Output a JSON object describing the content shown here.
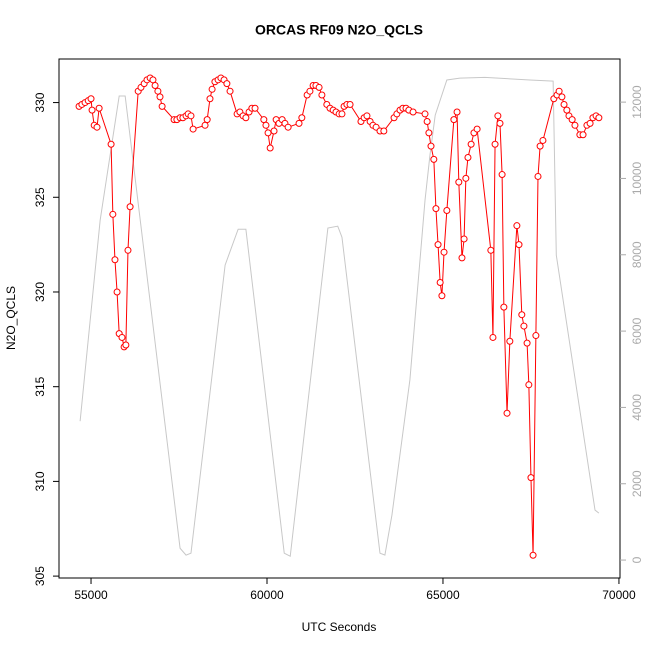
{
  "chart_data": {
    "type": "line",
    "title": "ORCAS RF09 N2O_QCLS",
    "xlabel": "UTC Seconds",
    "ylabel": "N2O_QCLS",
    "xlim": [
      54090,
      70030
    ],
    "ylim": [
      304.9,
      332.3
    ],
    "y2lim": [
      -470,
      13130
    ],
    "xticks": [
      55000,
      60000,
      65000,
      70000
    ],
    "yticks": [
      305,
      310,
      315,
      320,
      325,
      330
    ],
    "y2ticks": [
      0,
      2000,
      4000,
      6000,
      8000,
      10000,
      12000
    ],
    "series": [
      {
        "color": "#ff0000",
        "marker": "circle",
        "x": [
          54660,
          54740,
          54830,
          54920,
          55000,
          55030,
          55090,
          55170,
          55230,
          55570,
          55620,
          55680,
          55740,
          55800,
          55880,
          55940,
          55990,
          56050,
          56110,
          56340,
          56420,
          56510,
          56590,
          56680,
          56760,
          56820,
          56900,
          56960,
          57020,
          57360,
          57440,
          57530,
          57610,
          57700,
          57760,
          57840,
          57900,
          58240,
          58300,
          58380,
          58440,
          58520,
          58610,
          58690,
          58780,
          58860,
          58950,
          59150,
          59230,
          59320,
          59400,
          59490,
          59570,
          59660,
          59910,
          59970,
          60030,
          60090,
          60200,
          60260,
          60340,
          60430,
          60510,
          60600,
          60910,
          60990,
          61140,
          61220,
          61310,
          61390,
          61480,
          61560,
          61700,
          61790,
          61880,
          61960,
          62050,
          62130,
          62190,
          62270,
          62360,
          62670,
          62760,
          62840,
          62930,
          63010,
          63100,
          63210,
          63320,
          63610,
          63690,
          63780,
          63860,
          63950,
          64030,
          64150,
          64490,
          64550,
          64600,
          64660,
          64740,
          64800,
          64860,
          64920,
          64970,
          65030,
          65110,
          65310,
          65400,
          65450,
          65540,
          65600,
          65650,
          65710,
          65800,
          65880,
          65970,
          66360,
          66420,
          66480,
          66560,
          66620,
          66680,
          66730,
          66820,
          66900,
          67100,
          67160,
          67240,
          67300,
          67390,
          67440,
          67500,
          67560,
          67640,
          67700,
          67760,
          67840,
          68150,
          68240,
          68300,
          68380,
          68440,
          68520,
          68580,
          68670,
          68750,
          68890,
          68980,
          69090,
          69180,
          69260,
          69350,
          69430
        ],
        "values": [
          329.8,
          329.9,
          330.0,
          330.1,
          330.2,
          329.6,
          328.8,
          328.7,
          329.7,
          327.8,
          324.1,
          321.7,
          320.0,
          317.8,
          317.6,
          317.1,
          317.2,
          322.2,
          324.5,
          330.6,
          330.8,
          331.0,
          331.2,
          331.3,
          331.2,
          330.9,
          330.6,
          330.3,
          329.8,
          329.1,
          329.1,
          329.2,
          329.2,
          329.3,
          329.4,
          329.3,
          328.6,
          328.8,
          329.1,
          330.2,
          330.7,
          331.1,
          331.2,
          331.3,
          331.2,
          331.0,
          330.6,
          329.4,
          329.5,
          329.3,
          329.2,
          329.5,
          329.7,
          329.7,
          329.1,
          328.8,
          328.4,
          327.6,
          328.5,
          329.1,
          328.9,
          329.1,
          328.9,
          328.7,
          328.9,
          329.2,
          330.4,
          330.6,
          330.9,
          330.9,
          330.8,
          330.4,
          329.9,
          329.7,
          329.6,
          329.5,
          329.4,
          329.4,
          329.8,
          329.9,
          329.9,
          329.0,
          329.2,
          329.3,
          329.0,
          328.8,
          328.7,
          328.5,
          328.5,
          329.2,
          329.4,
          329.6,
          329.7,
          329.7,
          329.6,
          329.5,
          329.4,
          329.0,
          328.4,
          327.7,
          327.0,
          324.4,
          322.5,
          320.5,
          319.8,
          322.1,
          324.3,
          329.1,
          329.5,
          325.8,
          321.8,
          322.8,
          326.0,
          327.1,
          327.8,
          328.4,
          328.6,
          322.2,
          317.6,
          327.8,
          329.3,
          328.9,
          326.2,
          319.2,
          313.6,
          317.4,
          323.5,
          322.5,
          318.8,
          318.2,
          317.3,
          315.1,
          310.2,
          306.1,
          317.7,
          326.1,
          327.7,
          328.0,
          330.2,
          330.4,
          330.6,
          330.3,
          329.9,
          329.6,
          329.3,
          329.1,
          328.8,
          328.3,
          328.3,
          328.8,
          328.9,
          329.2,
          329.3,
          329.2
        ]
      },
      {
        "color": "#c8c8c8",
        "axis": "y2",
        "x": [
          54690,
          55260,
          55800,
          55970,
          57530,
          57700,
          57840,
          58810,
          59180,
          59400,
          60490,
          60660,
          61730,
          62010,
          62130,
          63210,
          63350,
          63550,
          64060,
          64490,
          64630,
          64780,
          65110,
          65480,
          66190,
          67470,
          68130,
          68220,
          69320,
          69430
        ],
        "values": [
          3640,
          8910,
          12160,
          12160,
          310,
          130,
          180,
          7730,
          8670,
          8670,
          180,
          100,
          8700,
          8750,
          8460,
          180,
          130,
          1180,
          4720,
          9430,
          10610,
          11660,
          12580,
          12630,
          12650,
          12580,
          12550,
          7990,
          1310,
          1230
        ]
      }
    ]
  }
}
